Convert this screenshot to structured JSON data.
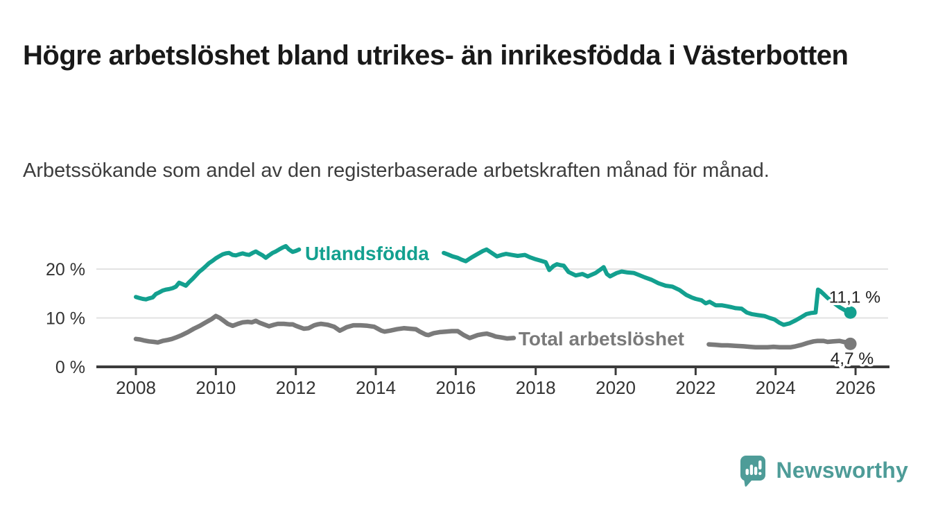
{
  "title": "Högre arbetslöshet bland utrikes- än inrikesfödda i Västerbotten",
  "subtitle": "Arbetssökande som andel av den registerbaserade arbetskraften månad för månad.",
  "branding": {
    "logo_text": "Newsworthy",
    "logo_icon": "bar-chart-speech-bubble-icon",
    "brand_color": "#4e9c98"
  },
  "chart_data": {
    "type": "line",
    "title": "",
    "xlabel": "",
    "ylabel": "",
    "grid": true,
    "grid_color": "#e2e2e2",
    "axis_color": "#3b3b3b",
    "tick_text_color": "#333333",
    "x_axis": {
      "ticks": [
        2008,
        2010,
        2012,
        2014,
        2016,
        2018,
        2020,
        2022,
        2024,
        2026
      ],
      "range": [
        2007.0,
        2026.85
      ]
    },
    "y_axis": {
      "ticks": [
        0,
        10,
        20
      ],
      "tick_labels": [
        "0 %",
        "10 %",
        "20 %"
      ],
      "range": [
        0,
        26
      ]
    },
    "series": [
      {
        "name": "Utlandsfödda",
        "color": "#13a08f",
        "stroke_width": 6,
        "inline_label_anchor": [
          2012.23,
          23.26
        ],
        "end_value": 11.1,
        "end_label": "11,1 %",
        "end_label_offset": [
          -31,
          -14
        ],
        "leader_line": {
          "from": [
            2025.12,
            15.1
          ],
          "to": [
            2025.33,
            13.7
          ]
        },
        "segments": [
          [
            [
              2008.0,
              14.3
            ],
            [
              2008.08,
              14.1
            ],
            [
              2008.17,
              13.9
            ],
            [
              2008.25,
              13.8
            ],
            [
              2008.33,
              14.0
            ],
            [
              2008.42,
              14.2
            ],
            [
              2008.5,
              14.9
            ],
            [
              2008.58,
              15.2
            ],
            [
              2008.67,
              15.6
            ],
            [
              2008.75,
              15.8
            ],
            [
              2008.83,
              15.9
            ],
            [
              2008.92,
              16.1
            ],
            [
              2009.0,
              16.4
            ],
            [
              2009.08,
              17.2
            ],
            [
              2009.17,
              16.9
            ],
            [
              2009.25,
              16.6
            ],
            [
              2009.33,
              17.3
            ],
            [
              2009.42,
              18.0
            ],
            [
              2009.5,
              18.7
            ],
            [
              2009.58,
              19.4
            ],
            [
              2009.67,
              20.0
            ],
            [
              2009.75,
              20.6
            ],
            [
              2009.83,
              21.2
            ],
            [
              2009.92,
              21.7
            ],
            [
              2010.0,
              22.2
            ],
            [
              2010.08,
              22.6
            ],
            [
              2010.17,
              23.0
            ],
            [
              2010.25,
              23.2
            ],
            [
              2010.33,
              23.3
            ],
            [
              2010.42,
              22.9
            ],
            [
              2010.5,
              22.8
            ],
            [
              2010.58,
              23.0
            ],
            [
              2010.67,
              23.2
            ],
            [
              2010.75,
              23.0
            ],
            [
              2010.83,
              22.9
            ],
            [
              2010.92,
              23.3
            ],
            [
              2011.0,
              23.6
            ],
            [
              2011.08,
              23.2
            ],
            [
              2011.17,
              22.8
            ],
            [
              2011.25,
              22.3
            ],
            [
              2011.33,
              22.8
            ],
            [
              2011.42,
              23.3
            ],
            [
              2011.5,
              23.6
            ],
            [
              2011.58,
              24.0
            ],
            [
              2011.67,
              24.4
            ],
            [
              2011.75,
              24.7
            ],
            [
              2011.83,
              24.0
            ],
            [
              2011.92,
              23.5
            ],
            [
              2012.0,
              23.7
            ],
            [
              2012.08,
              24.0
            ]
          ],
          [
            [
              2015.7,
              23.3
            ],
            [
              2015.8,
              23.0
            ],
            [
              2015.92,
              22.6
            ],
            [
              2016.05,
              22.3
            ],
            [
              2016.15,
              21.9
            ],
            [
              2016.25,
              21.6
            ],
            [
              2016.4,
              22.4
            ],
            [
              2016.55,
              23.1
            ],
            [
              2016.68,
              23.7
            ],
            [
              2016.77,
              24.0
            ],
            [
              2016.9,
              23.3
            ],
            [
              2017.03,
              22.6
            ],
            [
              2017.15,
              22.9
            ],
            [
              2017.26,
              23.1
            ],
            [
              2017.4,
              22.9
            ],
            [
              2017.55,
              22.7
            ],
            [
              2017.73,
              22.9
            ],
            [
              2017.86,
              22.4
            ],
            [
              2018.0,
              22.0
            ],
            [
              2018.13,
              21.7
            ],
            [
              2018.25,
              21.4
            ],
            [
              2018.34,
              19.8
            ],
            [
              2018.44,
              20.6
            ],
            [
              2018.53,
              21.0
            ],
            [
              2018.62,
              20.8
            ],
            [
              2018.7,
              20.7
            ],
            [
              2018.82,
              19.4
            ],
            [
              2019.0,
              18.7
            ],
            [
              2019.17,
              19.0
            ],
            [
              2019.3,
              18.5
            ],
            [
              2019.5,
              19.2
            ],
            [
              2019.62,
              19.9
            ],
            [
              2019.7,
              20.4
            ],
            [
              2019.78,
              19.0
            ],
            [
              2019.86,
              18.5
            ],
            [
              2020.03,
              19.2
            ],
            [
              2020.15,
              19.5
            ],
            [
              2020.3,
              19.3
            ],
            [
              2020.45,
              19.2
            ],
            [
              2020.58,
              18.8
            ],
            [
              2020.73,
              18.3
            ],
            [
              2020.9,
              17.8
            ],
            [
              2021.07,
              17.1
            ],
            [
              2021.25,
              16.6
            ],
            [
              2021.42,
              16.4
            ],
            [
              2021.6,
              15.7
            ],
            [
              2021.77,
              14.7
            ],
            [
              2021.9,
              14.2
            ],
            [
              2022.0,
              13.9
            ],
            [
              2022.15,
              13.6
            ],
            [
              2022.25,
              13.0
            ],
            [
              2022.35,
              13.3
            ],
            [
              2022.5,
              12.6
            ],
            [
              2022.65,
              12.6
            ],
            [
              2022.78,
              12.4
            ],
            [
              2022.9,
              12.2
            ],
            [
              2023.0,
              12.0
            ],
            [
              2023.15,
              11.9
            ],
            [
              2023.28,
              11.1
            ],
            [
              2023.4,
              10.8
            ],
            [
              2023.55,
              10.6
            ],
            [
              2023.72,
              10.4
            ],
            [
              2023.85,
              10.0
            ],
            [
              2023.97,
              9.7
            ],
            [
              2024.1,
              9.0
            ],
            [
              2024.2,
              8.6
            ],
            [
              2024.35,
              8.9
            ],
            [
              2024.5,
              9.5
            ],
            [
              2024.65,
              10.2
            ],
            [
              2024.77,
              10.8
            ],
            [
              2024.88,
              11.0
            ],
            [
              2025.0,
              11.1
            ],
            [
              2025.06,
              15.8
            ],
            [
              2025.12,
              15.5
            ],
            [
              2025.2,
              14.9
            ],
            [
              2025.3,
              14.1
            ],
            [
              2025.45,
              13.1
            ],
            [
              2025.6,
              12.2
            ],
            [
              2025.75,
              11.5
            ],
            [
              2025.87,
              11.1
            ]
          ]
        ]
      },
      {
        "name": "Total arbetslöshet",
        "color": "#7a7a7a",
        "stroke_width": 6.5,
        "inline_label_anchor": [
          2017.57,
          5.8
        ],
        "end_value": 4.7,
        "end_label": "4,7 %",
        "end_label_offset": [
          -29,
          29
        ],
        "segments": [
          [
            [
              2008.0,
              5.7
            ],
            [
              2008.1,
              5.6
            ],
            [
              2008.2,
              5.4
            ],
            [
              2008.33,
              5.2
            ],
            [
              2008.45,
              5.1
            ],
            [
              2008.55,
              5.0
            ],
            [
              2008.67,
              5.3
            ],
            [
              2008.8,
              5.5
            ],
            [
              2008.9,
              5.7
            ],
            [
              2009.0,
              6.0
            ],
            [
              2009.15,
              6.5
            ],
            [
              2009.3,
              7.1
            ],
            [
              2009.45,
              7.8
            ],
            [
              2009.6,
              8.4
            ],
            [
              2009.75,
              9.1
            ],
            [
              2009.9,
              9.8
            ],
            [
              2010.0,
              10.4
            ],
            [
              2010.1,
              10.0
            ],
            [
              2010.2,
              9.4
            ],
            [
              2010.3,
              8.8
            ],
            [
              2010.42,
              8.4
            ],
            [
              2010.55,
              8.8
            ],
            [
              2010.67,
              9.1
            ],
            [
              2010.8,
              9.2
            ],
            [
              2010.9,
              9.1
            ],
            [
              2011.0,
              9.4
            ],
            [
              2011.1,
              9.0
            ],
            [
              2011.2,
              8.7
            ],
            [
              2011.33,
              8.3
            ],
            [
              2011.45,
              8.6
            ],
            [
              2011.55,
              8.8
            ],
            [
              2011.7,
              8.8
            ],
            [
              2011.83,
              8.7
            ],
            [
              2011.92,
              8.7
            ],
            [
              2012.0,
              8.4
            ],
            [
              2012.1,
              8.1
            ],
            [
              2012.2,
              7.8
            ],
            [
              2012.32,
              7.9
            ],
            [
              2012.46,
              8.5
            ],
            [
              2012.55,
              8.7
            ],
            [
              2012.63,
              8.8
            ],
            [
              2012.72,
              8.7
            ],
            [
              2012.8,
              8.6
            ],
            [
              2012.96,
              8.2
            ],
            [
              2013.1,
              7.4
            ],
            [
              2013.2,
              7.8
            ],
            [
              2013.27,
              8.1
            ],
            [
              2013.44,
              8.5
            ],
            [
              2013.62,
              8.5
            ],
            [
              2013.79,
              8.4
            ],
            [
              2013.96,
              8.2
            ],
            [
              2014.05,
              7.8
            ],
            [
              2014.14,
              7.4
            ],
            [
              2014.22,
              7.2
            ],
            [
              2014.36,
              7.4
            ],
            [
              2014.53,
              7.7
            ],
            [
              2014.7,
              7.9
            ],
            [
              2014.85,
              7.8
            ],
            [
              2015.0,
              7.7
            ],
            [
              2015.1,
              7.2
            ],
            [
              2015.25,
              6.6
            ],
            [
              2015.32,
              6.5
            ],
            [
              2015.45,
              6.9
            ],
            [
              2015.6,
              7.1
            ],
            [
              2015.75,
              7.2
            ],
            [
              2015.9,
              7.3
            ],
            [
              2016.05,
              7.3
            ],
            [
              2016.2,
              6.5
            ],
            [
              2016.35,
              5.9
            ],
            [
              2016.45,
              6.2
            ],
            [
              2016.55,
              6.5
            ],
            [
              2016.68,
              6.7
            ],
            [
              2016.78,
              6.8
            ],
            [
              2016.9,
              6.5
            ],
            [
              2017.0,
              6.2
            ],
            [
              2017.15,
              6.0
            ],
            [
              2017.28,
              5.8
            ],
            [
              2017.45,
              5.9
            ]
          ],
          [
            [
              2022.33,
              4.6
            ],
            [
              2022.5,
              4.5
            ],
            [
              2022.65,
              4.4
            ],
            [
              2022.8,
              4.4
            ],
            [
              2023.0,
              4.3
            ],
            [
              2023.2,
              4.2
            ],
            [
              2023.35,
              4.1
            ],
            [
              2023.5,
              4.0
            ],
            [
              2023.65,
              4.0
            ],
            [
              2023.8,
              4.0
            ],
            [
              2023.95,
              4.1
            ],
            [
              2024.1,
              4.0
            ],
            [
              2024.25,
              4.0
            ],
            [
              2024.37,
              4.0
            ],
            [
              2024.5,
              4.2
            ],
            [
              2024.65,
              4.5
            ],
            [
              2024.8,
              4.9
            ],
            [
              2024.95,
              5.2
            ],
            [
              2025.05,
              5.3
            ],
            [
              2025.2,
              5.3
            ],
            [
              2025.3,
              5.1
            ],
            [
              2025.45,
              5.2
            ],
            [
              2025.6,
              5.3
            ],
            [
              2025.7,
              5.1
            ],
            [
              2025.8,
              5.0
            ],
            [
              2025.87,
              4.7
            ]
          ]
        ]
      }
    ]
  }
}
